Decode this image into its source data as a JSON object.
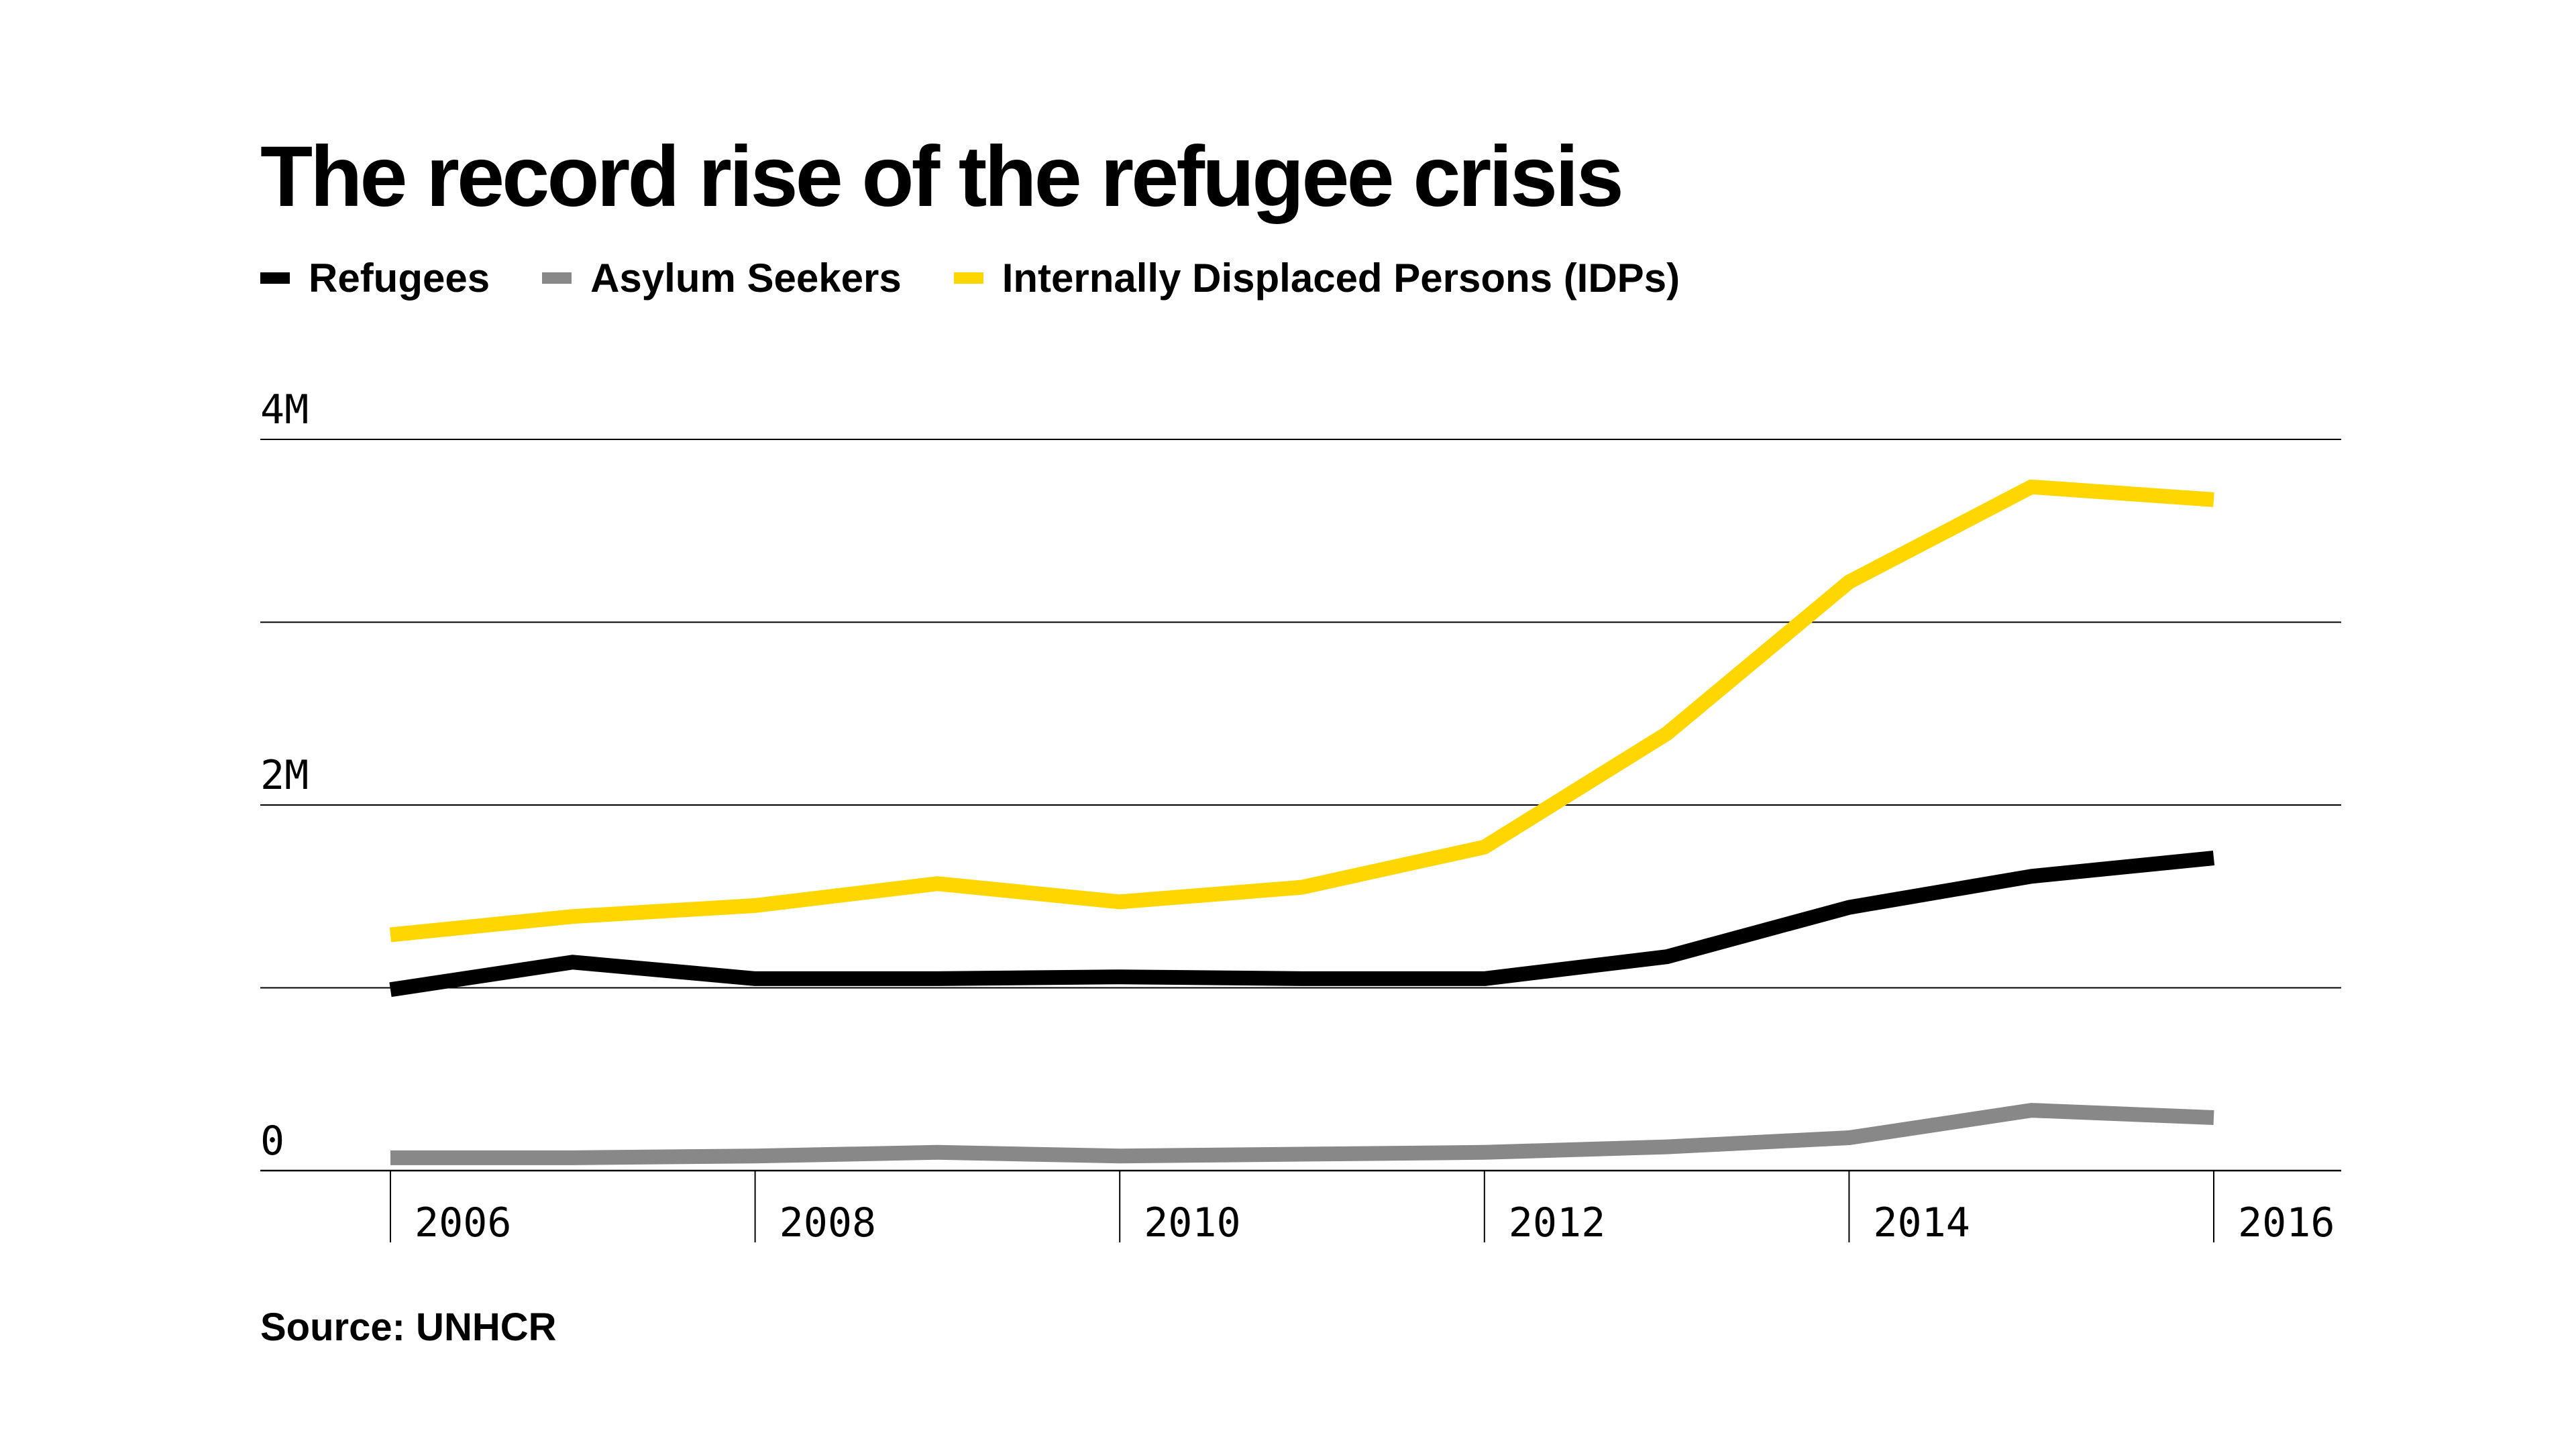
{
  "title": "The record rise of the refugee crisis",
  "source": "Source: UNHCR",
  "legend": [
    {
      "label": "Refugees",
      "color": "#000000"
    },
    {
      "label": "Asylum Seekers",
      "color": "#888888"
    },
    {
      "label": "Internally Displaced Persons (IDPs)",
      "color": "#FFD600"
    }
  ],
  "chart_data": {
    "type": "line",
    "title": "The record rise of the refugee crisis",
    "xlabel": "",
    "ylabel": "",
    "x": [
      2006,
      2007,
      2008,
      2009,
      2010,
      2011,
      2012,
      2013,
      2014,
      2015,
      2016
    ],
    "x_ticks": [
      "2006",
      "2008",
      "2010",
      "2012",
      "2014",
      "2016"
    ],
    "y_ticks": [
      {
        "value": 0,
        "label": "0"
      },
      {
        "value": 1000000,
        "label": ""
      },
      {
        "value": 2000000,
        "label": "2M"
      },
      {
        "value": 3000000,
        "label": ""
      },
      {
        "value": 4000000,
        "label": "4M"
      }
    ],
    "ylim": [
      0,
      4000000
    ],
    "grid": true,
    "legend_position": "top-left",
    "series": [
      {
        "name": "Internally Displaced Persons (IDPs)",
        "color": "#FFD600",
        "values": [
          1290000,
          1390000,
          1450000,
          1570000,
          1470000,
          1550000,
          1770000,
          2390000,
          3220000,
          3740000,
          3670000
        ]
      },
      {
        "name": "Refugees",
        "color": "#000000",
        "values": [
          990000,
          1140000,
          1050000,
          1050000,
          1060000,
          1050000,
          1050000,
          1170000,
          1440000,
          1610000,
          1710000
        ]
      },
      {
        "name": "Asylum Seekers",
        "color": "#888888",
        "values": [
          70000,
          70000,
          80000,
          100000,
          80000,
          90000,
          100000,
          130000,
          180000,
          330000,
          290000
        ]
      }
    ]
  }
}
